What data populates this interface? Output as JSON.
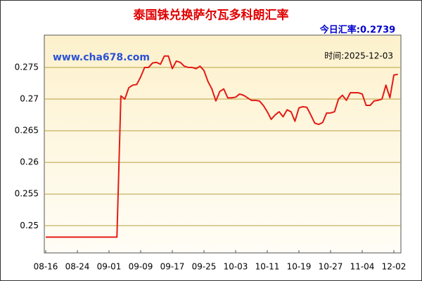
{
  "chart_data": {
    "type": "line",
    "title": "泰国铢兑换萨尔瓦多科朗汇率",
    "rate_label": "今日汇率:",
    "rate_value": 0.2739,
    "time_text": "时间:2025-12-03",
    "watermark": "www.cha678.com",
    "categories": [
      "08-16",
      null,
      null,
      null,
      null,
      null,
      null,
      null,
      "08-24",
      null,
      null,
      null,
      null,
      null,
      null,
      null,
      "09-01",
      null,
      null,
      null,
      null,
      null,
      null,
      null,
      "09-09",
      null,
      null,
      null,
      null,
      null,
      null,
      null,
      "09-17",
      null,
      null,
      null,
      null,
      null,
      null,
      null,
      "09-25",
      null,
      null,
      null,
      null,
      null,
      null,
      null,
      "10-03",
      null,
      null,
      null,
      null,
      null,
      null,
      null,
      "10-11",
      null,
      null,
      null,
      null,
      null,
      null,
      null,
      "10-19",
      null,
      null,
      null,
      null,
      null,
      null,
      null,
      "10-27",
      null,
      null,
      null,
      null,
      null,
      null,
      null,
      "11-04",
      null,
      null,
      null,
      null,
      null,
      null,
      null,
      "12-02",
      null
    ],
    "values": [
      0.2482,
      0.2482,
      0.2482,
      0.2482,
      0.2482,
      0.2482,
      0.2482,
      0.2482,
      0.2482,
      0.2482,
      0.2482,
      0.2482,
      0.2482,
      0.2482,
      0.2482,
      0.2482,
      0.2482,
      0.2482,
      0.2482,
      0.2705,
      0.27,
      0.2718,
      0.2722,
      0.2723,
      0.2735,
      0.275,
      0.275,
      0.2757,
      0.2758,
      0.2755,
      0.2768,
      0.2768,
      0.2748,
      0.276,
      0.2758,
      0.2752,
      0.275,
      0.275,
      0.2748,
      0.2752,
      0.2745,
      0.2728,
      0.2716,
      0.2697,
      0.2712,
      0.2716,
      0.2702,
      0.2702,
      0.2703,
      0.2708,
      0.2706,
      0.2702,
      0.2698,
      0.2698,
      0.2697,
      0.269,
      0.268,
      0.2668,
      0.2675,
      0.268,
      0.2672,
      0.2683,
      0.268,
      0.2665,
      0.2686,
      0.2688,
      0.2687,
      0.2675,
      0.2662,
      0.266,
      0.2663,
      0.2678,
      0.2678,
      0.268,
      0.27,
      0.2706,
      0.2698,
      0.271,
      0.271,
      0.271,
      0.2708,
      0.269,
      0.269,
      0.2697,
      0.2698,
      0.27,
      0.2722,
      0.2702,
      0.2738,
      0.2739
    ],
    "color": "#e41b17",
    "ylim": [
      0.2457,
      0.2801
    ],
    "yticks": [
      0.25,
      0.255,
      0.26,
      0.265,
      0.27,
      0.275
    ],
    "grid": true
  }
}
